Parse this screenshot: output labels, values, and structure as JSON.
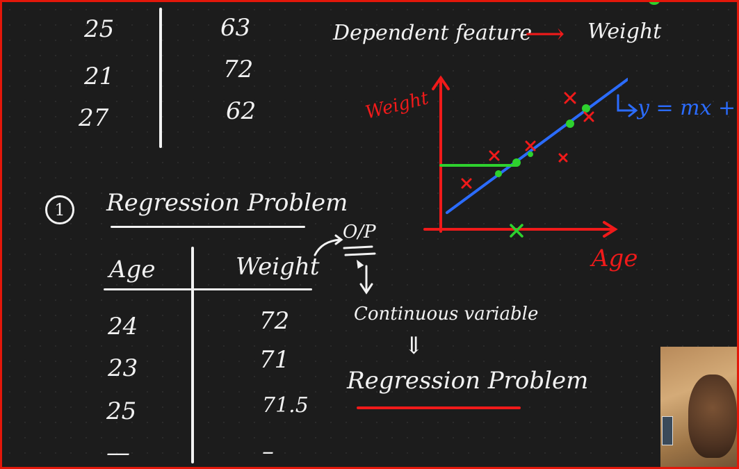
{
  "top_table": {
    "rows": [
      {
        "age": "25",
        "weight": "63"
      },
      {
        "age": "21",
        "weight": "72"
      },
      {
        "age": "27",
        "weight": "62"
      }
    ]
  },
  "dependent_feature": {
    "label": "Dependent feature",
    "arrow": "⟶",
    "target": "Weight"
  },
  "section": {
    "number": "1",
    "title": "Regression Problem"
  },
  "table": {
    "headers": [
      "Age",
      "Weight"
    ],
    "rows": [
      {
        "age": "24",
        "weight": "72"
      },
      {
        "age": "23",
        "weight": "71"
      },
      {
        "age": "25",
        "weight": "71.5"
      },
      {
        "age": "—",
        "weight": "–"
      }
    ]
  },
  "notes": {
    "op": "O/P",
    "continuous": "Continuous variable",
    "double_arrow": "⇓",
    "regression": "Regression Problem"
  },
  "graph": {
    "ylabel": "Weight",
    "xlabel": "Age",
    "equation": "y = mx + c",
    "colors": {
      "axes": "#f01a1a",
      "line": "#2b6cff",
      "points": "#2ed12e",
      "crosses": "#f01a1a"
    }
  }
}
